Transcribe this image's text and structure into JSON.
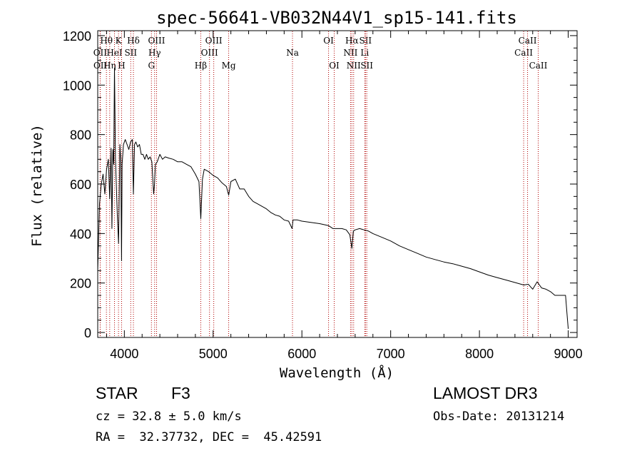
{
  "chart_data": {
    "type": "line",
    "title": "spec-56641-VB032N44V1_sp15-141.fits",
    "xlabel": "Wavelength (Å)",
    "ylabel": "Flux (relative)",
    "xlim": [
      3700,
      9100
    ],
    "ylim": [
      -20,
      1220
    ],
    "xticks": [
      4000,
      5000,
      6000,
      7000,
      8000,
      9000
    ],
    "xtick_labels": [
      "4000",
      "5000",
      "6000",
      "7000",
      "8000",
      "9000"
    ],
    "yticks": [
      0,
      200,
      400,
      600,
      800,
      1000,
      1200
    ],
    "ytick_labels": [
      "0",
      "200",
      "400",
      "600",
      "800",
      "1000",
      "1200"
    ],
    "series": [
      {
        "name": "flux",
        "x": [
          3700,
          3720,
          3740,
          3760,
          3780,
          3800,
          3820,
          3835,
          3850,
          3860,
          3870,
          3880,
          3889,
          3900,
          3920,
          3935,
          3950,
          3960,
          3968,
          3975,
          3990,
          4010,
          4030,
          4050,
          4070,
          4090,
          4102,
          4115,
          4130,
          4150,
          4170,
          4190,
          4210,
          4230,
          4250,
          4270,
          4290,
          4310,
          4330,
          4340,
          4350,
          4370,
          4400,
          4430,
          4460,
          4500,
          4550,
          4600,
          4650,
          4700,
          4750,
          4800,
          4840,
          4861,
          4880,
          4900,
          4950,
          5000,
          5050,
          5100,
          5150,
          5175,
          5200,
          5250,
          5300,
          5350,
          5400,
          5450,
          5500,
          5550,
          5600,
          5650,
          5700,
          5750,
          5800,
          5850,
          5890,
          5900,
          5950,
          6000,
          6100,
          6200,
          6300,
          6350,
          6400,
          6450,
          6500,
          6540,
          6563,
          6580,
          6600,
          6650,
          6700,
          6750,
          6800,
          6900,
          7000,
          7100,
          7200,
          7300,
          7400,
          7500,
          7600,
          7700,
          7800,
          7900,
          8000,
          8100,
          8200,
          8300,
          8400,
          8500,
          8550,
          8600,
          8650,
          8700,
          8750,
          8800,
          8850,
          8880,
          8900,
          8920,
          8950,
          8970,
          8990,
          9000
        ],
        "y": [
          250,
          520,
          600,
          640,
          560,
          660,
          700,
          540,
          745,
          420,
          740,
          680,
          1070,
          700,
          480,
          360,
          760,
          690,
          290,
          680,
          760,
          780,
          760,
          740,
          770,
          780,
          560,
          760,
          770,
          750,
          760,
          720,
          720,
          700,
          720,
          700,
          710,
          690,
          560,
          600,
          680,
          690,
          720,
          700,
          710,
          705,
          700,
          690,
          690,
          680,
          670,
          640,
          610,
          460,
          620,
          660,
          650,
          635,
          625,
          605,
          590,
          555,
          610,
          620,
          580,
          580,
          550,
          530,
          520,
          510,
          500,
          485,
          475,
          470,
          455,
          450,
          420,
          455,
          455,
          450,
          445,
          440,
          432,
          420,
          420,
          420,
          415,
          395,
          340,
          410,
          415,
          420,
          415,
          410,
          400,
          385,
          370,
          350,
          335,
          320,
          305,
          295,
          285,
          278,
          268,
          258,
          245,
          232,
          222,
          212,
          202,
          192,
          195,
          175,
          205,
          180,
          175,
          165,
          150,
          150,
          150,
          150,
          150,
          150,
          60,
          15
        ]
      }
    ],
    "line_markers": [
      {
        "label": "Hθ",
        "x": 3798,
        "row": 0
      },
      {
        "label": "OII",
        "x": 3727,
        "row": 1
      },
      {
        "label": "OII",
        "x": 3729,
        "row": 2
      },
      {
        "label": "Hη",
        "x": 3835,
        "row": 2
      },
      {
        "label": "HeI",
        "x": 3889,
        "row": 1
      },
      {
        "label": "K",
        "x": 3934,
        "row": 0
      },
      {
        "label": "H",
        "x": 3969,
        "row": 2
      },
      {
        "label": "SII",
        "x": 4072,
        "row": 1
      },
      {
        "label": "Hδ",
        "x": 4102,
        "row": 0
      },
      {
        "label": "OIII",
        "x": 4363,
        "row": 0
      },
      {
        "label": "Hγ",
        "x": 4341,
        "row": 1
      },
      {
        "label": "G",
        "x": 4305,
        "row": 2
      },
      {
        "label": "Hβ",
        "x": 4861,
        "row": 2
      },
      {
        "label": "OIII",
        "x": 4959,
        "row": 1
      },
      {
        "label": "OIII",
        "x": 5007,
        "row": 0
      },
      {
        "label": "Mg",
        "x": 5175,
        "row": 2
      },
      {
        "label": "Na",
        "x": 5894,
        "row": 1
      },
      {
        "label": "OI",
        "x": 6300,
        "row": 0
      },
      {
        "label": "OI",
        "x": 6364,
        "row": 2
      },
      {
        "label": "NII",
        "x": 6548,
        "row": 1
      },
      {
        "label": "Hα",
        "x": 6563,
        "row": 0
      },
      {
        "label": "NII",
        "x": 6583,
        "row": 2
      },
      {
        "label": "SII",
        "x": 6716,
        "row": 0
      },
      {
        "label": "Li",
        "x": 6708,
        "row": 1
      },
      {
        "label": "SII",
        "x": 6731,
        "row": 2
      },
      {
        "label": "CaII",
        "x": 8498,
        "row": 1
      },
      {
        "label": "CaII",
        "x": 8542,
        "row": 0
      },
      {
        "label": "CaII",
        "x": 8662,
        "row": 2
      }
    ],
    "grid": false
  },
  "info": {
    "class": "STAR",
    "subclass": "F3",
    "redshift": "cz = 32.8 ± 5.0 km/s",
    "coords": "RA =  32.37732, DEC =  45.42591",
    "survey": "LAMOST DR3",
    "obs_date": "Obs-Date: 20131214"
  },
  "colors": {
    "axis": "#000000",
    "spectrum": "#000000",
    "marker_line": "#b00000"
  }
}
